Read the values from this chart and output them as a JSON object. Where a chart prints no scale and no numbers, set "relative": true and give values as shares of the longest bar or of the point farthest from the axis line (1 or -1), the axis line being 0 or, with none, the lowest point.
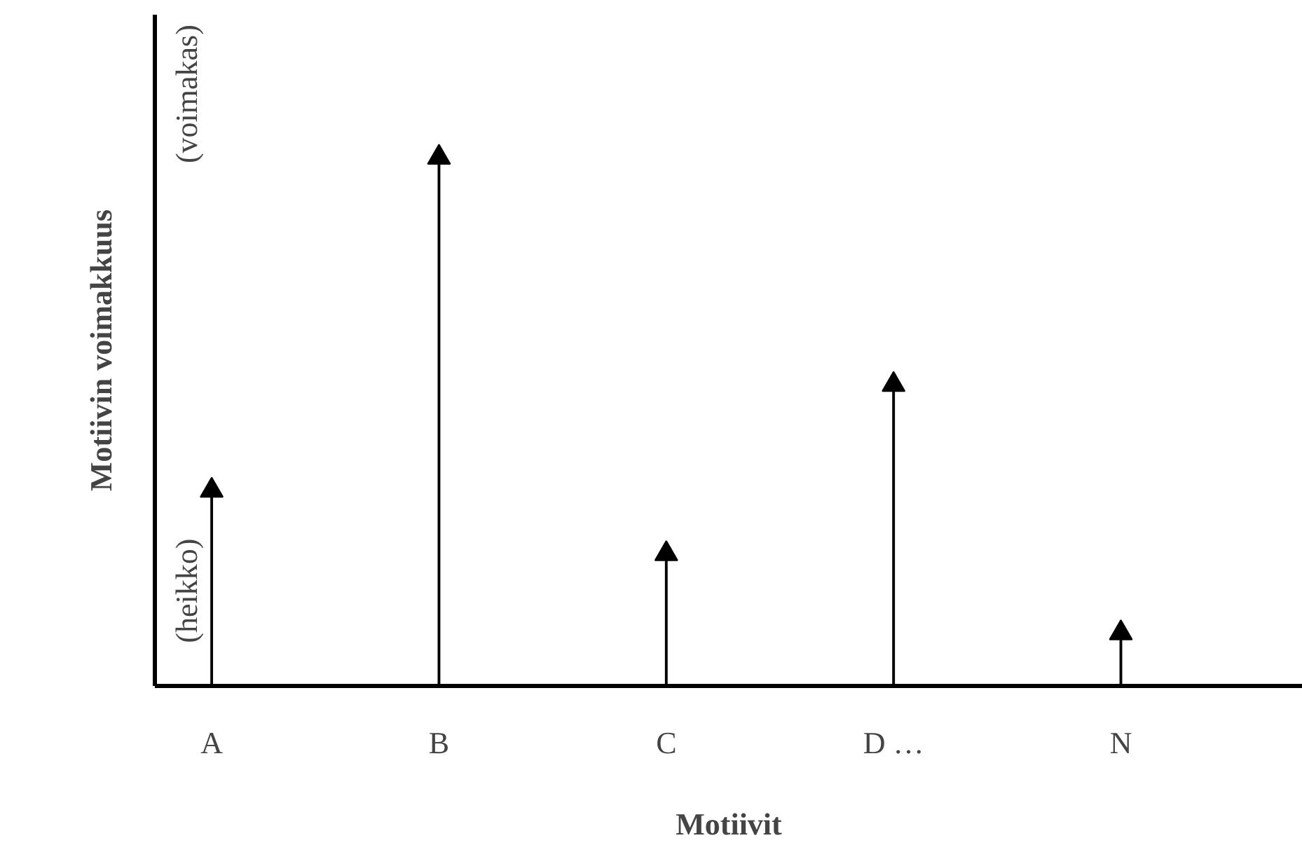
{
  "chart_data": {
    "type": "lollipop",
    "relative": true,
    "marker": "triangle",
    "categories": [
      "A",
      "B",
      "C",
      "D …",
      "N"
    ],
    "values": [
      0.37,
      1,
      0.25,
      0.57,
      0.1
    ],
    "color": "#000000",
    "xlabel": "Motiivit",
    "ylabel": "Motiivin voimakkuus",
    "annotations": [
      "(heikko)",
      "(voimakas)"
    ],
    "grid": false
  }
}
